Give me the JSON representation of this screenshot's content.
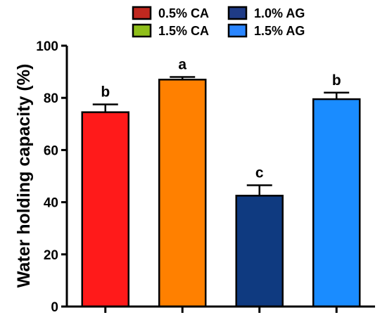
{
  "chart_data": {
    "type": "bar",
    "categories": [
      "0.5% CA",
      "1.5% CA",
      "1.0% AG",
      "1.5% AG"
    ],
    "values": [
      74.5,
      87,
      42.5,
      79.5
    ],
    "errors": [
      3,
      1,
      4,
      2.5
    ],
    "significance": [
      "b",
      "a",
      "c",
      "b"
    ],
    "colors": [
      "#ff1a1a",
      "#ff8000",
      "#0f3a80",
      "#1a8cff"
    ],
    "ylabel": "Water holding capacity (%)",
    "ylim": [
      0,
      100
    ],
    "yticks": [
      0,
      20,
      40,
      60,
      80,
      100
    ],
    "grid": false,
    "legend": {
      "placement": "top",
      "entries": [
        {
          "label": "0.5% CA",
          "color": "#c0281f"
        },
        {
          "label": "1.0% AG",
          "color": "#1f3b86"
        },
        {
          "label": "1.5% CA",
          "color": "#8fbf1a"
        },
        {
          "label": "1.5% AG",
          "color": "#2a86ff"
        }
      ]
    }
  }
}
